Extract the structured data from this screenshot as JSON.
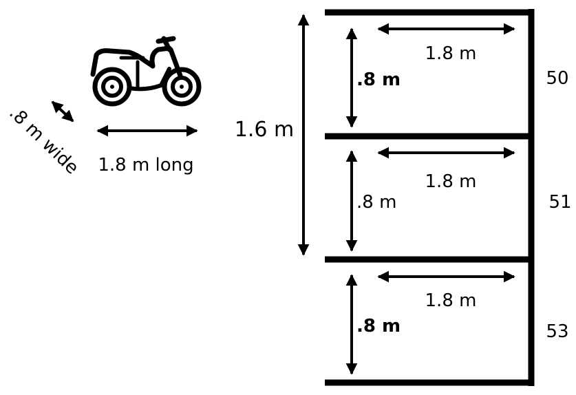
{
  "motorcycle": {
    "icon": "motorcycle-icon",
    "width_label": ".8 m wide",
    "length_label": "1.8 m long"
  },
  "parking": {
    "total_height_label": "1.6 m",
    "spaces": [
      {
        "number": "50",
        "length_label": "1.8 m",
        "width_label": ".8 m",
        "width_bold": true
      },
      {
        "number": "51",
        "length_label": "1.8 m",
        "width_label": ".8 m",
        "width_bold": false
      },
      {
        "number": "53",
        "length_label": "1.8 m",
        "width_label": ".8 m",
        "width_bold": true
      }
    ]
  },
  "colors": {
    "ink": "#000000",
    "background": "#ffffff"
  }
}
